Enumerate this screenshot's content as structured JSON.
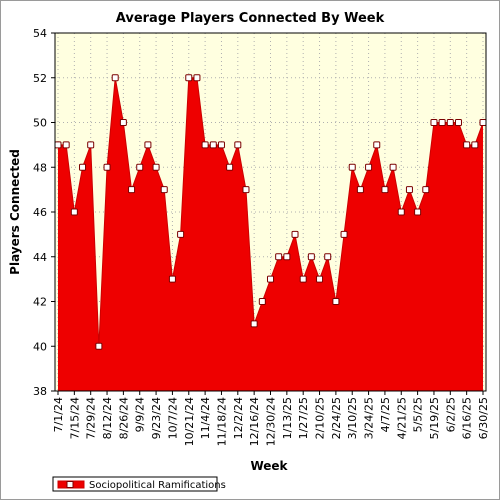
{
  "chart_data": {
    "type": "area",
    "title": "Average Players Connected By Week",
    "xlabel": "Week",
    "ylabel": "Players Connected",
    "ylim": [
      38,
      54
    ],
    "yticks": [
      38,
      40,
      42,
      44,
      46,
      48,
      50,
      52,
      54
    ],
    "grid": true,
    "legend_position": "bottom-left",
    "colors": {
      "fill": "#ee0000",
      "line": "#cc0000",
      "marker_fill": "#ffffff",
      "plot_background": "#ffffe0",
      "grid": "#b0b0b0"
    },
    "x_tick_labels": [
      "7/1/24",
      "7/15/24",
      "7/29/24",
      "8/12/24",
      "8/26/24",
      "9/9/24",
      "9/23/24",
      "10/7/24",
      "10/21/24",
      "11/4/24",
      "11/18/24",
      "12/2/24",
      "12/16/24",
      "12/30/24",
      "1/13/25",
      "1/27/25",
      "2/10/25",
      "2/24/25",
      "3/10/25",
      "3/24/25",
      "4/7/25",
      "4/21/25",
      "5/5/25",
      "5/19/25",
      "6/2/25",
      "6/16/25",
      "6/30/25"
    ],
    "series": [
      {
        "name": "Sociopolitical Ramifications",
        "values": [
          49,
          49,
          46,
          48,
          49,
          40,
          48,
          52,
          50,
          47,
          48,
          49,
          48,
          47,
          43,
          45,
          52,
          52,
          49,
          49,
          49,
          48,
          49,
          47,
          41,
          42,
          43,
          44,
          44,
          45,
          43,
          44,
          43,
          44,
          42,
          45,
          48,
          47,
          48,
          49,
          47,
          48,
          46,
          47,
          46,
          47,
          50,
          50,
          50,
          50,
          49,
          49,
          50
        ]
      }
    ]
  }
}
